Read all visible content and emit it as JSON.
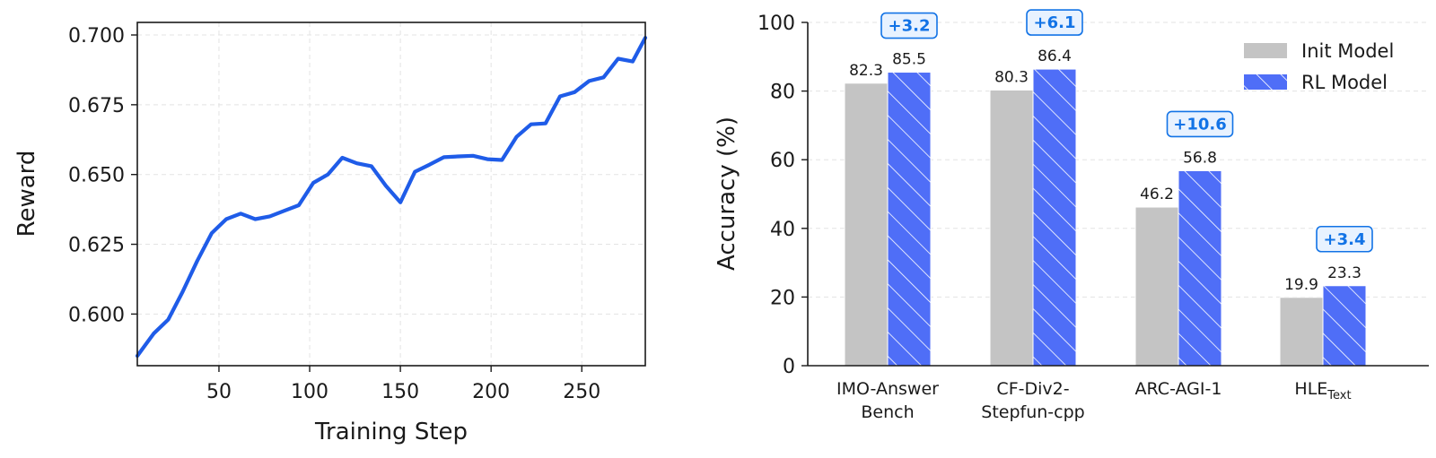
{
  "colors": {
    "reward_line": "#1f5ce8",
    "init_bar": "#c4c4c4",
    "rl_bar": "#4f6ef7",
    "delta_text": "#1273e6",
    "delta_fill": "#e8f2ff",
    "grid": "#e3e3e3"
  },
  "chart_data": [
    {
      "type": "line",
      "title": "",
      "xlabel": "Training Step",
      "ylabel": "Reward",
      "xlim": [
        5,
        285
      ],
      "ylim": [
        0.5815,
        0.7045
      ],
      "xticks": [
        50,
        100,
        150,
        200,
        250
      ],
      "yticks": [
        0.6,
        0.625,
        0.65,
        0.675,
        0.7
      ],
      "ytick_labels": [
        "0.600",
        "0.625",
        "0.650",
        "0.675",
        "0.700"
      ],
      "grid": true,
      "series": [
        {
          "x": [
            5,
            14,
            22,
            30,
            38,
            46,
            54,
            62,
            70,
            78,
            86,
            94,
            102,
            110,
            118,
            126,
            134,
            142,
            150,
            158,
            166,
            174,
            182,
            190,
            198,
            206,
            214,
            222,
            230,
            238,
            246,
            254,
            262,
            270,
            278,
            285
          ],
          "y": [
            0.585,
            0.593,
            0.598,
            0.608,
            0.619,
            0.629,
            0.634,
            0.636,
            0.634,
            0.635,
            0.637,
            0.639,
            0.647,
            0.65,
            0.656,
            0.654,
            0.653,
            0.646,
            0.64,
            0.651,
            0.6535,
            0.6562,
            0.6565,
            0.6567,
            0.6555,
            0.6552,
            0.6635,
            0.668,
            0.6683,
            0.678,
            0.6795,
            0.6835,
            0.6848,
            0.6915,
            0.6905,
            0.699
          ]
        }
      ]
    },
    {
      "type": "bar",
      "title": "",
      "xlabel": "",
      "ylabel": "Accuracy (%)",
      "ylim": [
        0,
        100
      ],
      "yticks": [
        0,
        20,
        40,
        60,
        80,
        100
      ],
      "grid": true,
      "legend_position": "top-right",
      "categories": [
        {
          "line1": "IMO-Answer",
          "line2": "Bench"
        },
        {
          "line1": "CF-Div2-",
          "line2": "Stepfun-cpp"
        },
        {
          "line1": "ARC-AGI-1",
          "line2": ""
        },
        {
          "line1": "HLE",
          "sub": "Text",
          "line2": ""
        }
      ],
      "series": [
        {
          "name": "Init Model",
          "values": [
            82.3,
            80.3,
            46.2,
            19.9
          ]
        },
        {
          "name": "RL Model",
          "values": [
            85.5,
            86.4,
            56.8,
            23.3
          ]
        }
      ],
      "deltas": [
        "+3.2",
        "+6.1",
        "+10.6",
        "+3.4"
      ]
    }
  ]
}
